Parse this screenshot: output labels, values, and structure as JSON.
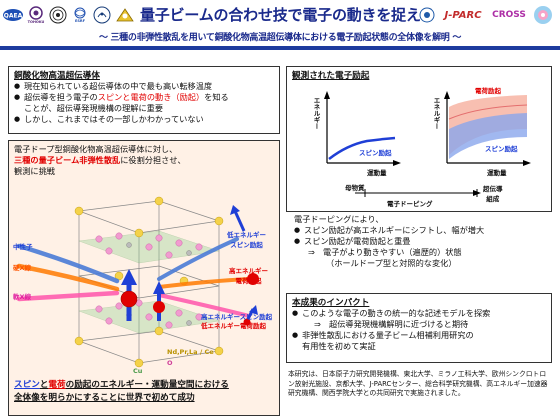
{
  "header": {
    "logos": [
      "QAEA",
      "TOHOKU",
      "",
      "ESRF",
      "",
      ""
    ],
    "logo_jparc": "J-PARC",
    "logo_cross": "CROSS",
    "title": "量子ビームの合わせ技で電子の動きを捉える",
    "subtitle": "～ 三種の非弾性散乱を用いて銅酸化物高温超伝導体における電子励起状態の全体像を解明 ～"
  },
  "background": {
    "title": "銅酸化物高温超伝導体",
    "items": [
      "現在知られている超伝導体の中で最も高い転移温度",
      [
        "超伝導を担う電子の",
        "スピンと電荷の動き（励起）",
        "を知る"
      ],
      "ことが、超伝導発現機構の理解に重要",
      "しかし、これまではその一部しかわかっていない"
    ]
  },
  "figure": {
    "intro_1": "電子ドープ型銅酸化物高温超伝導体に対し、",
    "intro_2a": "三種の量子ビーム非弾性散乱",
    "intro_2b": "に役割分担させ、",
    "intro_3": "観測に挑戦",
    "beam_neutron": "中性子",
    "beam_hard_xray": "硬X線",
    "beam_soft_xray": "軟X線",
    "label_low_spin_1": "低エネルギー",
    "label_low_spin_2": "スピン励起",
    "label_high_charge_1": "高エネルギー",
    "label_high_charge_2": "電荷励起",
    "label_high_spin_1": "高エネルギースピン励起",
    "label_low_charge": "低エネルギー電荷励起",
    "atom_nd": "Nd,Pr,La / Ce",
    "atom_o": "O",
    "atom_cu": "Cu",
    "conclusion_1a": "スピン",
    "conclusion_1b": "と",
    "conclusion_1c": "電荷",
    "conclusion_1d": "の励起のエネルギー・運動量空間における",
    "conclusion_2": "全体像を明らかにすることに世界で初めて成功"
  },
  "observed": {
    "title": "観測された電子励起",
    "y_axis": "エネルギー",
    "x_axis": "運動量",
    "spin_label": "スピン励起",
    "charge_label": "電荷励起",
    "parent_label": "母物質",
    "doping_label": "電子ドーピング",
    "sc_label_1": "超伝導",
    "sc_label_2": "組成"
  },
  "doping": {
    "intro": "電子ドーピングにより、",
    "items": [
      "スピン励起が高エネルギーにシフトし、幅が増大",
      "スピン励起が電荷励起と重畳"
    ],
    "sub_1": "⇒　電子がより動きやすい（遍歴的）状態",
    "sub_2": "（ホールドープ型と対照的な変化）"
  },
  "impact": {
    "title": "本成果のインパクト",
    "items": [
      "このような電子の動きの統一的な記述モデルを探索",
      "非弾性散乱における量子ビーム相補利用研究の"
    ],
    "sub_1": "⇒　超伝導発現機構解明に近づけると期待",
    "sub_2": "有用性を初めて実証"
  },
  "footer": {
    "text": "本研究は、日本原子力研究開発機構、東北大学、ミラノ工科大学、欧州シンクロトロン放射光施設、京都大学、J-PARCセンター、総合科学研究機構、高エネルギー加速器研究機構、関西学院大学との共同研究で実施されました。"
  },
  "colors": {
    "navy": "#1a2a8c",
    "red": "#e10000",
    "blue": "#1f3fd6",
    "pink_bg": "#fff0e8",
    "panel_bg": "#ffffff"
  }
}
